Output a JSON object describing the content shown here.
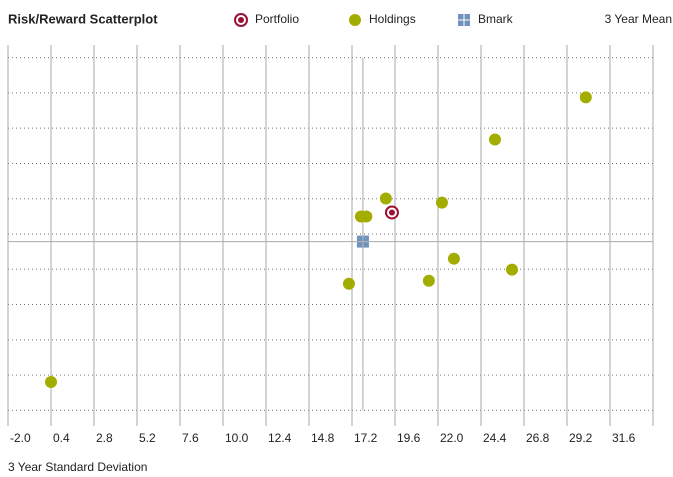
{
  "chart_data": {
    "type": "scatter",
    "title": "Risk/Reward Scatterplot",
    "x_label": "3 Year Standard Deviation",
    "y_label": "3 Year Mean",
    "xlim": [
      -2.0,
      34.0
    ],
    "xticks": [
      {
        "value": -2.0,
        "label": "-2.0"
      },
      0.4,
      2.8,
      5.2,
      7.6,
      {
        "value": 10.0,
        "label": "10.0"
      },
      12.4,
      14.8,
      17.2,
      19.6,
      {
        "value": 22.0,
        "label": "22.0"
      },
      24.4,
      26.8,
      29.2,
      31.6
    ],
    "ylim": [
      -1,
      21
    ],
    "yticks": [
      0,
      2,
      4,
      6,
      8,
      10,
      12,
      14,
      16,
      18,
      20
    ],
    "grid": true,
    "series": [
      {
        "name": "Portfolio",
        "color": "#9b1134",
        "marker": "ring",
        "x": [
          19.43
        ],
        "values": [
          11.22
        ]
      },
      {
        "name": "Holdings",
        "color": "#a2ad00",
        "marker": "circle",
        "x": [
          30.25,
          25.18,
          19.09,
          22.22,
          17.7,
          18.0,
          22.89,
          26.13,
          17.03,
          21.49,
          0.4
        ],
        "values": [
          17.75,
          15.36,
          12.01,
          11.78,
          10.99,
          10.99,
          8.6,
          7.98,
          7.18,
          7.35,
          1.61
        ]
      },
      {
        "name": "Bmark",
        "color": "#6f93bd",
        "marker": "squares",
        "x": [
          17.81
        ],
        "values": [
          9.57
        ]
      }
    ]
  }
}
